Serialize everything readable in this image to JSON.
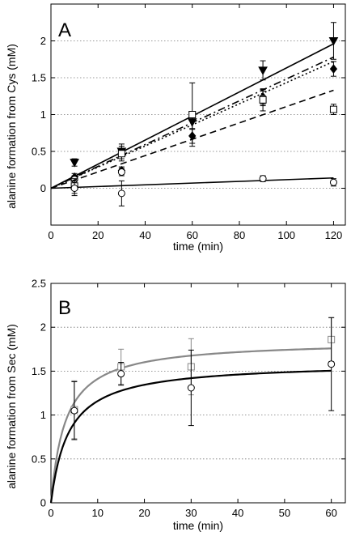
{
  "chart_data": [
    {
      "type": "scatter",
      "panel_label": "A",
      "xlabel": "time (min)",
      "ylabel": "alanine formation from Cys (mM)",
      "xlim": [
        0,
        125
      ],
      "ylim": [
        -0.5,
        2.5
      ],
      "xticks": [
        0,
        20,
        40,
        60,
        80,
        100,
        120
      ],
      "yticks": [
        0,
        0.5,
        1,
        1.5,
        2,
        2.5
      ],
      "ytick_labels": [
        "0",
        "0.5",
        "1",
        "1.5",
        "2",
        ""
      ],
      "grid": "horizontal dotted",
      "series": [
        {
          "marker": "triangle-down-filled",
          "line": "solid",
          "x": [
            10,
            30,
            60,
            90,
            120
          ],
          "y": [
            0.35,
            0.5,
            0.9,
            1.6,
            2.0
          ],
          "err": [
            0.05,
            0.1,
            0.1,
            0.13,
            0.25
          ],
          "fit": [
            [
              0,
              0
            ],
            [
              120,
              1.96
            ]
          ]
        },
        {
          "marker": "diamond-filled",
          "line": "dash-dot",
          "x": [
            10,
            30,
            60,
            90,
            120
          ],
          "y": [
            0.15,
            0.24,
            0.71,
            1.24,
            1.62
          ],
          "err": [
            0.05,
            0.05,
            0.1,
            0.1,
            0.1
          ],
          "fit": [
            [
              0,
              0
            ],
            [
              120,
              1.78
            ]
          ]
        },
        {
          "marker": "circle-open",
          "line": "dotted",
          "x": [
            10,
            30,
            90
          ],
          "y": [
            0.12,
            0.22,
            1.22
          ],
          "err": [
            0.05,
            0.05,
            0.1
          ],
          "fit": [
            [
              0,
              0
            ],
            [
              120,
              1.72
            ]
          ]
        },
        {
          "marker": "square-open",
          "line": "dashed",
          "x": [
            10,
            30,
            60,
            90,
            120
          ],
          "y": [
            0.03,
            0.47,
            1.0,
            1.2,
            1.07
          ],
          "err": [
            0.1,
            0.1,
            0.43,
            0.15,
            0.07
          ],
          "fit": [
            [
              0,
              0
            ],
            [
              120,
              1.33
            ]
          ]
        },
        {
          "marker": "circle-open",
          "line": "solid",
          "x": [
            10,
            30,
            90,
            120
          ],
          "y": [
            0.0,
            -0.07,
            0.13,
            0.08
          ],
          "err": [
            0.1,
            0.17,
            0.04,
            0.05
          ],
          "fit": [
            [
              0,
              0
            ],
            [
              120,
              0.14
            ]
          ]
        }
      ]
    },
    {
      "type": "scatter",
      "panel_label": "B",
      "xlabel": "time (min)",
      "ylabel": "alanine formation from Sec (mM)",
      "xlim": [
        0,
        63
      ],
      "ylim": [
        0,
        2.5
      ],
      "xticks": [
        0,
        10,
        20,
        30,
        40,
        50,
        60
      ],
      "yticks": [
        0,
        0.5,
        1,
        1.5,
        2,
        2.5
      ],
      "ytick_labels": [
        "0",
        "0.5",
        "1",
        "1.5",
        "2",
        "2.5"
      ],
      "grid": "horizontal dotted",
      "series": [
        {
          "marker": "square-open",
          "color": "#888888",
          "curve_color": "#888888",
          "x": [
            5,
            15,
            30,
            60
          ],
          "y": [
            1.06,
            1.55,
            1.55,
            1.86
          ],
          "err": [
            0.33,
            0.2,
            0.32,
            0.25
          ],
          "fit": {
            "form": "hyperbolic",
            "ymax": 1.85,
            "k": 3.1
          }
        },
        {
          "marker": "circle-open",
          "color": "#000000",
          "curve_color": "#000000",
          "x": [
            5,
            15,
            30,
            60
          ],
          "y": [
            1.05,
            1.47,
            1.31,
            1.58
          ],
          "err": [
            0.33,
            0.13,
            0.43,
            0.53
          ],
          "fit": {
            "form": "hyperbolic",
            "ymax": 1.6,
            "k": 3.8
          }
        }
      ]
    }
  ]
}
